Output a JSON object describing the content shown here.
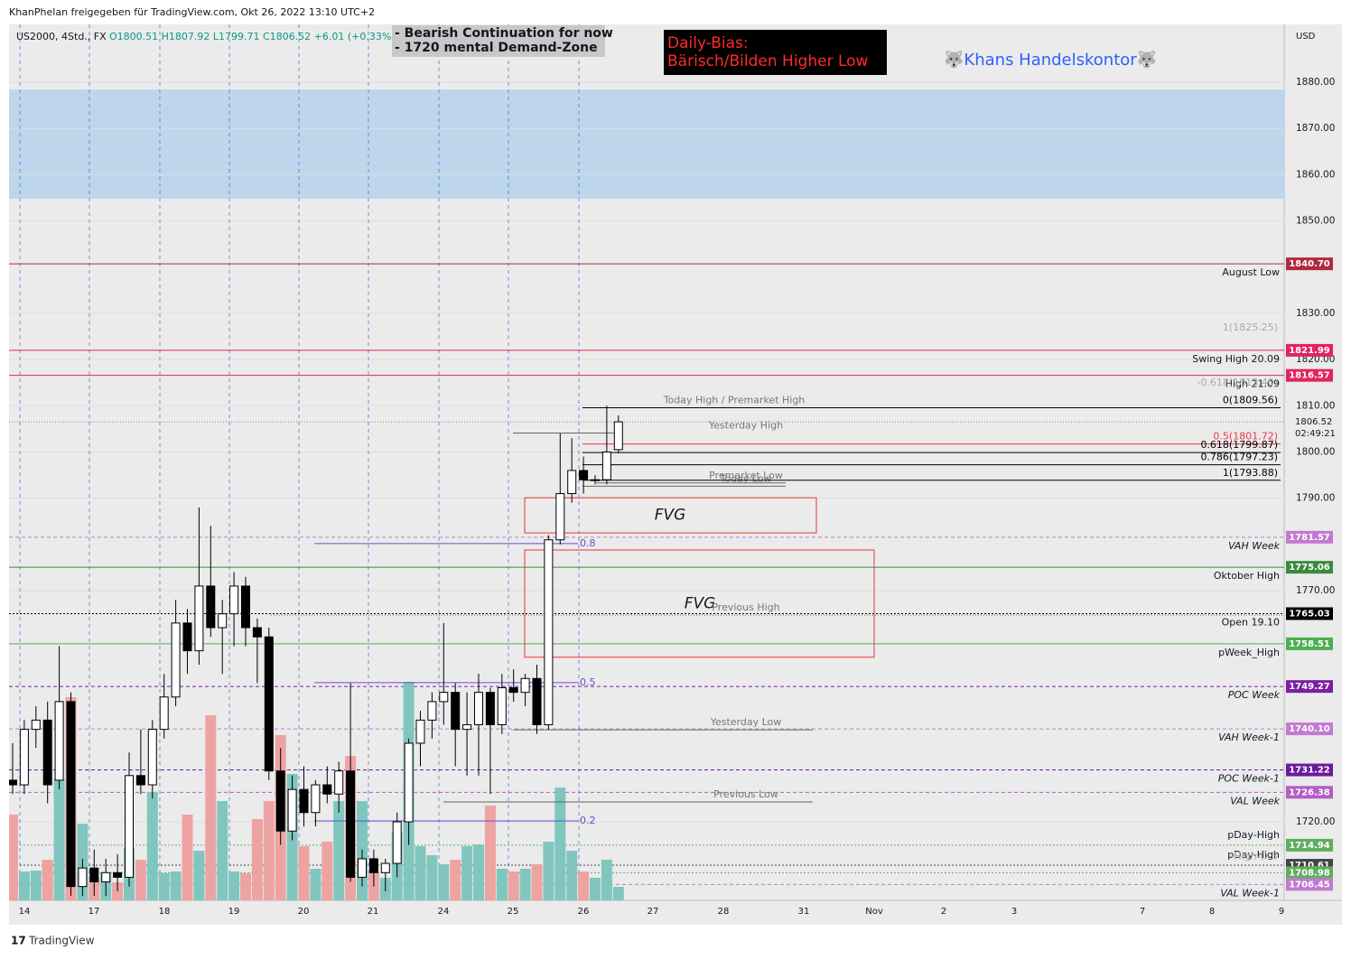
{
  "header": {
    "attribution": "KhanPhelan freigegeben für TradingView.com, Okt 26, 2022 13:10 UTC+2",
    "symbol": "US2000, 4Std., FX",
    "ohlc": "O1800.51  H1807.92  L1799.71  C1806.52  +6.01 (+0.33%)"
  },
  "notes": [
    "- Bearish Continuation for now",
    "- 1720 mental Demand-Zone"
  ],
  "bias": [
    "Daily-Bias:",
    "Bärisch/Bilden Higher Low"
  ],
  "brand": "🐺Khans Handelskontor🐺",
  "footer": "TradingView",
  "chart_data": {
    "type": "candlestick",
    "currency": "USD",
    "x_labels": [
      "14",
      "17",
      "18",
      "19",
      "20",
      "21",
      "24",
      "25",
      "26",
      "27",
      "28",
      "31",
      "Nov",
      "2",
      "3",
      "7",
      "8",
      "9"
    ],
    "ylim": [
      1703,
      1892.5
    ],
    "yticks": [
      {
        "value": 1720,
        "label": "1720.00"
      },
      {
        "value": 1770,
        "label": "1770.00"
      },
      {
        "value": 1790,
        "label": "1790.00"
      },
      {
        "value": 1800,
        "label": "1800.00"
      },
      {
        "value": 1810,
        "label": "1810.00"
      },
      {
        "value": 1820,
        "label": "1820.00"
      },
      {
        "value": 1830,
        "label": "1830.00"
      },
      {
        "value": 1850,
        "label": "1850.00"
      },
      {
        "value": 1860,
        "label": "1860.00"
      },
      {
        "value": 1870,
        "label": "1870.00"
      },
      {
        "value": 1880,
        "label": "1880.00"
      }
    ],
    "candles": {
      "open": [
        1729,
        1728,
        1740,
        1742,
        1729,
        1746,
        1706,
        1710,
        1707,
        1709,
        1708,
        1730,
        1728,
        1740,
        1747,
        1763,
        1757,
        1771,
        1762,
        1765,
        1771,
        1762,
        1760,
        1731,
        1718,
        1727,
        1722,
        1728,
        1726,
        1731,
        1708,
        1712,
        1709,
        1711,
        1720,
        1737,
        1742,
        1746,
        1748,
        1740,
        1741,
        1748,
        1741,
        1749,
        1748,
        1751,
        1741,
        1781,
        1791,
        1796,
        1794,
        1794,
        1800.51
      ],
      "high": [
        1737,
        1742,
        1745,
        1746,
        1758,
        1748,
        1712,
        1714,
        1712,
        1713,
        1735,
        1740,
        1742,
        1752,
        1768,
        1766,
        1788,
        1784,
        1768,
        1774,
        1773,
        1764,
        1762,
        1736,
        1730,
        1732,
        1729,
        1732,
        1733,
        1750,
        1714,
        1714,
        1712,
        1722,
        1738,
        1744,
        1748,
        1763,
        1750,
        1748,
        1752,
        1749,
        1752,
        1753,
        1752,
        1754,
        1782,
        1804,
        1803,
        1799,
        1795,
        1810,
        1807.92
      ],
      "low": [
        1726,
        1726,
        1736,
        1724,
        1727,
        1704,
        1704,
        1704,
        1704,
        1705,
        1706,
        1726,
        1725,
        1738,
        1745,
        1752,
        1754,
        1760,
        1752,
        1758,
        1758,
        1750,
        1729,
        1715,
        1716,
        1719,
        1719,
        1724,
        1722,
        1707,
        1706,
        1706,
        1705,
        1708,
        1715,
        1732,
        1738,
        1741,
        1732,
        1730,
        1730,
        1726,
        1739,
        1746,
        1745,
        1739,
        1740,
        1780,
        1789,
        1791,
        1793,
        1793,
        1799.71
      ],
      "close": [
        1728,
        1740,
        1742,
        1728,
        1746,
        1706,
        1710,
        1707,
        1709,
        1708,
        1730,
        1728,
        1740,
        1747,
        1763,
        1757,
        1771,
        1762,
        1765,
        1771,
        1762,
        1760,
        1731,
        1718,
        1727,
        1722,
        1728,
        1726,
        1731,
        1708,
        1712,
        1709,
        1711,
        1720,
        1737,
        1742,
        1746,
        1748,
        1740,
        1741,
        1748,
        1741,
        1749,
        1748,
        1751,
        1741,
        1781,
        1791,
        1796,
        1794,
        1794,
        1800,
        1806.52
      ]
    },
    "volume": [
      95,
      32,
      33,
      45,
      135,
      225,
      85,
      25,
      30,
      20,
      58,
      45,
      120,
      30,
      32,
      95,
      55,
      205,
      110,
      32,
      30,
      90,
      110,
      183,
      140,
      60,
      35,
      65,
      110,
      160,
      110,
      30,
      25,
      75,
      242,
      60,
      50,
      40,
      45,
      60,
      62,
      105,
      35,
      32,
      35,
      40,
      65,
      125,
      55,
      32,
      25,
      45,
      15
    ],
    "up_color": "#ffffff",
    "down_color": "#000000",
    "volume_up_color": "#80c6bf",
    "volume_down_color": "#eea3a3",
    "zone": {
      "from": 1854.8,
      "to": 1878.4,
      "color": "#bed6ec"
    },
    "current_price": {
      "value": 1806.52,
      "label": "1806.52",
      "countdown": "02:49:21"
    },
    "levels": [
      {
        "name": "August Low",
        "price": 1840.7,
        "price_label": "1840.70",
        "color": "#b2283c"
      },
      {
        "name": "Swing High 20.09",
        "price": 1821.99,
        "price_label": "1821.99",
        "color": "#e0245e"
      },
      {
        "name": "High 21.09",
        "price": 1816.57,
        "price_label": "1816.57",
        "color": "#e0245e"
      },
      {
        "name": "VAH Week",
        "price": 1781.57,
        "price_label": "1781.57",
        "color": "#c27ad1"
      },
      {
        "name": "Oktober High",
        "price": 1775.06,
        "price_label": "1775.06",
        "color": "#3b8a3e"
      },
      {
        "name": "Open 19.10",
        "price": 1765.03,
        "price_label": "1765.03",
        "color": "#000000"
      },
      {
        "name": "pWeek_High",
        "price": 1758.51,
        "price_label": "1758.51",
        "color": "#4caf50"
      },
      {
        "name": "POC Week",
        "price": 1749.27,
        "price_label": "1749.27",
        "color": "#7b1fa2"
      },
      {
        "name": "VAH Week-1",
        "price": 1740.1,
        "price_label": "1740.10",
        "color": "#c27ad1"
      },
      {
        "name": "POC Week-1",
        "price": 1731.22,
        "price_label": "1731.22",
        "color": "#6a1b9a"
      },
      {
        "name": "VAL Week",
        "price": 1726.38,
        "price_label": "1726.38",
        "color": "#b45cc4"
      },
      {
        "name": "pDay-High",
        "price": 1714.94,
        "price_label": "1714.94",
        "color": "#5fae5f"
      },
      {
        "name": "pDay-High",
        "price": 1710.61,
        "price_label": "1710.61",
        "color": "#444444"
      },
      {
        "price": 1708.98,
        "price_label": "1708.98",
        "color": "#5fae5f"
      },
      {
        "name": "VAL Week-1",
        "price": 1706.45,
        "price_label": "1706.45",
        "color": "#c27ad1"
      }
    ],
    "fib": [
      {
        "label": "0(1809.56)",
        "value": 1809.56,
        "color": "#000000"
      },
      {
        "label": "0.5(1801.72)",
        "value": 1801.72,
        "color": "#f23645"
      },
      {
        "label": "0.618(1799.87)",
        "value": 1799.87,
        "color": "#000000"
      },
      {
        "label": "0.786(1797.23)",
        "value": 1797.23,
        "color": "#000000"
      },
      {
        "label": "1(1793.88)",
        "value": 1793.88,
        "color": "#000000"
      }
    ],
    "faded_labels": [
      {
        "label": "1(1825.25)",
        "value": 1825.25
      },
      {
        "label": "-0.618(1813.40)",
        "value": 1813.4
      },
      {
        "label": "-High-D-3",
        "value": 1710.9
      }
    ],
    "line_labels": [
      {
        "label": "Today High / Premarket High",
        "price": 1809.56
      },
      {
        "label": "Yesterday High",
        "price": 1804.1
      },
      {
        "label": "Premarket Low",
        "price": 1793.3
      },
      {
        "label": "Today Low",
        "price": 1792.6
      },
      {
        "label": "Previous High",
        "price": 1764.7
      },
      {
        "label": "Yesterday Low",
        "price": 1739.9
      },
      {
        "label": "Previous Low",
        "price": 1724.3
      }
    ],
    "retracement": [
      {
        "label": "0.8",
        "price": 1780.2
      },
      {
        "label": "0.5",
        "price": 1750.1
      },
      {
        "label": "0.2",
        "price": 1720.2
      }
    ],
    "fvg": [
      {
        "label": "FVG",
        "top": 1790.1,
        "bottom": 1782.5
      },
      {
        "label": "FVG",
        "top": 1778.8,
        "bottom": 1755.6
      }
    ]
  }
}
